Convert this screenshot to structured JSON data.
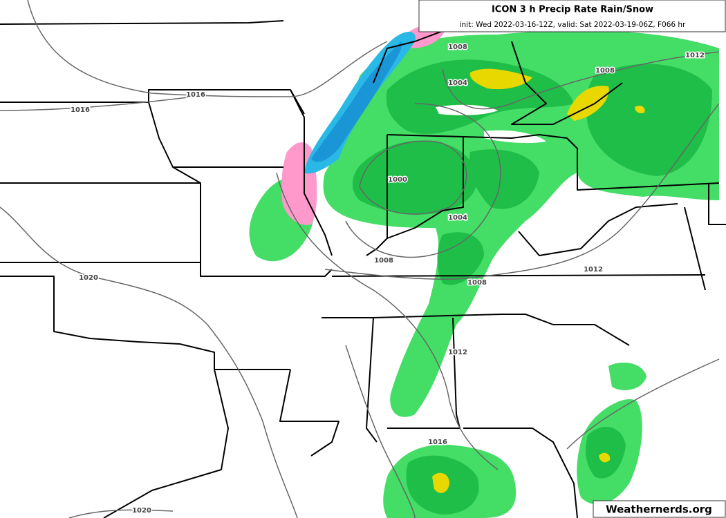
{
  "header": {
    "title": "ICON 3 h Precip Rate Rain/Snow",
    "subtitle": "init: Wed 2022-03-16-12Z, valid: Sat 2022-03-19-06Z, F066 hr"
  },
  "isobar_labels": [
    "1008",
    "1012",
    "1008",
    "1004",
    "1016",
    "1016",
    "1000",
    "1004",
    "1008",
    "1008",
    "1012",
    "1020",
    "1012",
    "1016",
    "1020"
  ],
  "watermark": "Weathernerds.org"
}
